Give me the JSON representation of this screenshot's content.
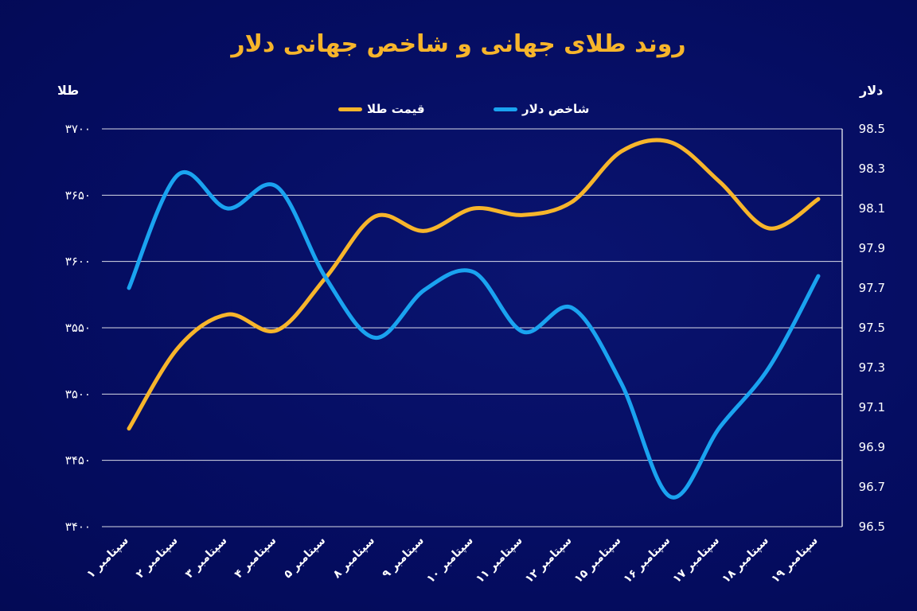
{
  "title": "روند طلای جهانی و شاخص جهانی دلار",
  "left_axis_label": "طلا",
  "right_axis_label": "دلار",
  "colors": {
    "gold": "#f7b52b",
    "dollar": "#1aa3f0",
    "background": "#030a5c",
    "grid": "#ffffff"
  },
  "chart_data": {
    "type": "line",
    "title": "روند طلای جهانی و شاخص جهانی دلار",
    "categories": [
      "۱ سپتامبر",
      "۲ سپتامبر",
      "۳ سپتامبر",
      "۴ سپتامبر",
      "۵ سپتامبر",
      "۸ سپتامبر",
      "۹ سپتامبر",
      "۱۰ سپتامبر",
      "۱۱ سپتامبر",
      "۱۲ سپتامبر",
      "۱۵ سپتامبر",
      "۱۶ سپتامبر",
      "۱۷ سپتامبر",
      "۱۸ سپتامبر",
      "۱۹ سپتامبر"
    ],
    "left_axis": {
      "label": "طلا",
      "range": [
        3400,
        3700
      ],
      "ticks": [
        "۳۴۰۰",
        "۳۴۵۰",
        "۳۵۰۰",
        "۳۵۵۰",
        "۳۶۰۰",
        "۳۶۵۰",
        "۳۷۰۰"
      ],
      "tick_values": [
        3400,
        3450,
        3500,
        3550,
        3600,
        3650,
        3700
      ]
    },
    "right_axis": {
      "label": "دلار",
      "range": [
        96.5,
        98.5
      ],
      "ticks": [
        "96.5",
        "96.7",
        "96.9",
        "97.1",
        "97.3",
        "97.5",
        "97.7",
        "97.9",
        "98.1",
        "98.3",
        "98.5"
      ],
      "tick_values": [
        96.5,
        96.7,
        96.9,
        97.1,
        97.3,
        97.5,
        97.7,
        97.9,
        98.1,
        98.3,
        98.5
      ]
    },
    "series": [
      {
        "name": "قیمت طلا",
        "axis": "left",
        "color": "#f7b52b",
        "values": [
          3474,
          3535,
          3560,
          3548,
          3588,
          3634,
          3623,
          3640,
          3635,
          3645,
          3683,
          3690,
          3660,
          3625,
          3647
        ]
      },
      {
        "name": "شاخص دلار",
        "axis": "right",
        "color": "#1aa3f0",
        "values": [
          97.7,
          98.27,
          98.1,
          98.21,
          97.75,
          97.45,
          97.69,
          97.78,
          97.48,
          97.6,
          97.22,
          96.65,
          97.0,
          97.3,
          97.76
        ]
      }
    ],
    "grid": true,
    "legend_position": "top-center"
  }
}
